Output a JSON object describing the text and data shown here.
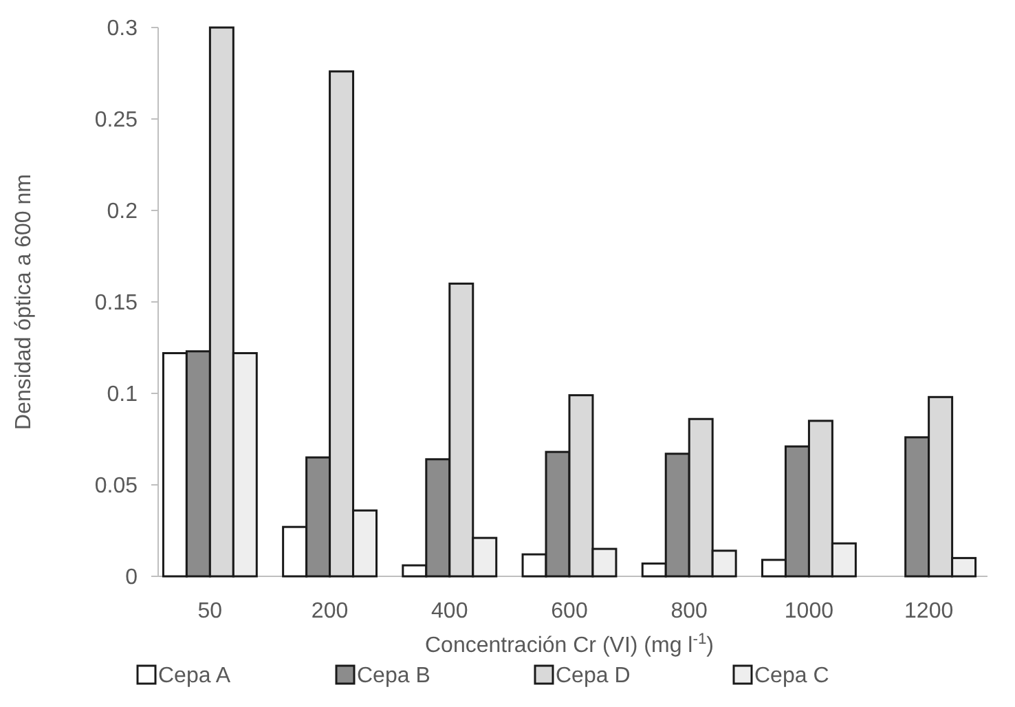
{
  "chart_data": {
    "type": "bar",
    "xlabel": "Concentración Cr (VI) (mg l$^{-1}$)",
    "ylabel": "Densidad óptica a 600 nm",
    "categories": [
      "50",
      "200",
      "400",
      "600",
      "800",
      "1000",
      "1200"
    ],
    "series": [
      {
        "name": "Cepa A",
        "color": "#ffffff",
        "values": [
          0.122,
          0.027,
          0.006,
          0.012,
          0.007,
          0.009,
          0
        ]
      },
      {
        "name": "Cepa B",
        "color": "#8c8c8c",
        "values": [
          0.123,
          0.065,
          0.064,
          0.068,
          0.067,
          0.071,
          0.076
        ]
      },
      {
        "name": "Cepa D",
        "color": "#d9d9d9",
        "values": [
          0.3,
          0.276,
          0.16,
          0.099,
          0.086,
          0.085,
          0.098
        ]
      },
      {
        "name": "Cepa C",
        "color": "#eeeeee",
        "values": [
          0.122,
          0.036,
          0.021,
          0.015,
          0.014,
          0.018,
          0.01
        ]
      }
    ],
    "ylim": [
      0,
      0.3
    ],
    "yticks": [
      0,
      0.05,
      0.1,
      0.15,
      0.2,
      0.25,
      0.3
    ],
    "grid": false,
    "legend": "bottom"
  }
}
